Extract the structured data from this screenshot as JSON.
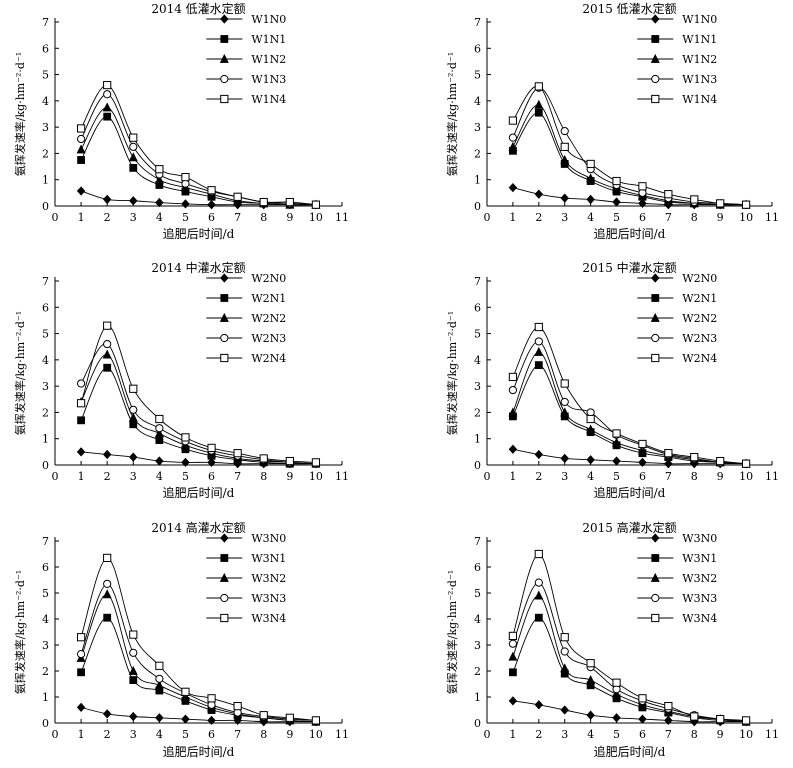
{
  "chart_data": [
    {
      "type": "line",
      "title": "2014 低灌水定额",
      "xlabel": "追肥后时间/d",
      "ylabel": "氨挥发速率/kg·hm⁻²·d⁻¹",
      "xlim": [
        0,
        11
      ],
      "ylim": [
        0,
        7
      ],
      "xticks": [
        "0",
        "1",
        "2",
        "3",
        "4",
        "5",
        "6",
        "7",
        "8",
        "9",
        "10",
        "11"
      ],
      "yticks": [
        "0",
        "1",
        "2",
        "3",
        "4",
        "5",
        "6",
        "7"
      ],
      "legend_position": "top-right",
      "grid": false,
      "x": [
        1,
        2,
        3,
        4,
        5,
        6,
        7,
        8,
        9,
        10
      ],
      "series": [
        {
          "name": "W1N0",
          "marker": "diamond",
          "values": [
            0.57,
            0.25,
            0.2,
            0.13,
            0.08,
            0.05,
            0.05,
            0.05,
            0.05,
            0.05
          ]
        },
        {
          "name": "W1N1",
          "marker": "square-filled",
          "values": [
            1.75,
            3.4,
            1.45,
            0.8,
            0.55,
            0.35,
            0.15,
            0.1,
            0.05,
            0.05
          ]
        },
        {
          "name": "W1N2",
          "marker": "triangle",
          "values": [
            2.15,
            3.75,
            1.85,
            1.0,
            0.7,
            0.45,
            0.2,
            0.1,
            0.05,
            0.05
          ]
        },
        {
          "name": "W1N3",
          "marker": "circle-open",
          "values": [
            2.55,
            4.25,
            2.25,
            1.2,
            0.85,
            0.55,
            0.35,
            0.15,
            0.1,
            0.05
          ]
        },
        {
          "name": "W1N4",
          "marker": "square-open",
          "values": [
            2.95,
            4.6,
            2.6,
            1.4,
            1.1,
            0.6,
            0.35,
            0.15,
            0.15,
            0.05
          ]
        }
      ]
    },
    {
      "type": "line",
      "title": "2015 低灌水定额",
      "xlabel": "追肥后时间/d",
      "ylabel": "氨挥发速率/kg·hm⁻²·d⁻¹",
      "xlim": [
        0,
        11
      ],
      "ylim": [
        0,
        7
      ],
      "xticks": [
        "0",
        "1",
        "2",
        "3",
        "4",
        "5",
        "6",
        "7",
        "8",
        "9",
        "10",
        "11"
      ],
      "yticks": [
        "0",
        "1",
        "2",
        "3",
        "4",
        "5",
        "6",
        "7"
      ],
      "legend_position": "top-right",
      "grid": false,
      "x": [
        1,
        2,
        3,
        4,
        5,
        6,
        7,
        8,
        9,
        10
      ],
      "series": [
        {
          "name": "W1N0",
          "marker": "diamond",
          "values": [
            0.7,
            0.45,
            0.3,
            0.25,
            0.15,
            0.1,
            0.05,
            0.05,
            0.05,
            0.05
          ]
        },
        {
          "name": "W1N1",
          "marker": "square-filled",
          "values": [
            2.1,
            3.55,
            1.6,
            0.95,
            0.55,
            0.35,
            0.15,
            0.1,
            0.05,
            0.05
          ]
        },
        {
          "name": "W1N2",
          "marker": "triangle",
          "values": [
            2.25,
            3.85,
            1.75,
            1.05,
            0.65,
            0.4,
            0.2,
            0.1,
            0.05,
            0.05
          ]
        },
        {
          "name": "W1N3",
          "marker": "circle-open",
          "values": [
            2.6,
            4.5,
            2.85,
            1.4,
            0.8,
            0.5,
            0.3,
            0.15,
            0.1,
            0.05
          ]
        },
        {
          "name": "W1N4",
          "marker": "square-open",
          "values": [
            3.25,
            4.55,
            2.25,
            1.6,
            0.95,
            0.75,
            0.45,
            0.25,
            0.1,
            0.05
          ]
        }
      ]
    },
    {
      "type": "line",
      "title": "2014 中灌水定额",
      "xlabel": "追肥后时间/d",
      "ylabel": "氨挥发速率/kg·hm⁻²·d⁻¹",
      "xlim": [
        0,
        11
      ],
      "ylim": [
        0,
        7
      ],
      "xticks": [
        "0",
        "1",
        "2",
        "3",
        "4",
        "5",
        "6",
        "7",
        "8",
        "9",
        "10",
        "11"
      ],
      "yticks": [
        "0",
        "1",
        "2",
        "3",
        "4",
        "5",
        "6",
        "7"
      ],
      "legend_position": "top-right",
      "grid": false,
      "x": [
        1,
        2,
        3,
        4,
        5,
        6,
        7,
        8,
        9,
        10
      ],
      "series": [
        {
          "name": "W2N0",
          "marker": "diamond",
          "values": [
            0.5,
            0.4,
            0.3,
            0.15,
            0.1,
            0.1,
            0.05,
            0.05,
            0.05,
            0.05
          ]
        },
        {
          "name": "W2N1",
          "marker": "square-filled",
          "values": [
            1.7,
            3.7,
            1.55,
            0.95,
            0.6,
            0.35,
            0.2,
            0.1,
            0.05,
            0.05
          ]
        },
        {
          "name": "W2N2",
          "marker": "triangle",
          "values": [
            2.4,
            4.2,
            1.8,
            1.2,
            0.75,
            0.45,
            0.25,
            0.15,
            0.1,
            0.05
          ]
        },
        {
          "name": "W2N3",
          "marker": "circle-open",
          "values": [
            3.1,
            4.6,
            2.1,
            1.4,
            0.9,
            0.55,
            0.35,
            0.2,
            0.1,
            0.05
          ]
        },
        {
          "name": "W2N4",
          "marker": "square-open",
          "values": [
            2.35,
            5.3,
            2.9,
            1.75,
            1.05,
            0.65,
            0.45,
            0.25,
            0.15,
            0.1
          ]
        }
      ]
    },
    {
      "type": "line",
      "title": "2015 中灌水定额",
      "xlabel": "追肥后时间/d",
      "ylabel": "氨挥发速率/kg·hm⁻²·d⁻¹",
      "xlim": [
        0,
        11
      ],
      "ylim": [
        0,
        7
      ],
      "xticks": [
        "0",
        "1",
        "2",
        "3",
        "4",
        "5",
        "6",
        "7",
        "8",
        "9",
        "10",
        "11"
      ],
      "yticks": [
        "0",
        "1",
        "2",
        "3",
        "4",
        "5",
        "6",
        "7"
      ],
      "legend_position": "top-right",
      "grid": false,
      "x": [
        1,
        2,
        3,
        4,
        5,
        6,
        7,
        8,
        9,
        10
      ],
      "series": [
        {
          "name": "W2N0",
          "marker": "diamond",
          "values": [
            0.6,
            0.4,
            0.25,
            0.2,
            0.15,
            0.1,
            0.05,
            0.05,
            0.05,
            0.05
          ]
        },
        {
          "name": "W2N1",
          "marker": "square-filled",
          "values": [
            1.85,
            3.8,
            1.85,
            1.25,
            0.75,
            0.45,
            0.3,
            0.15,
            0.1,
            0.05
          ]
        },
        {
          "name": "W2N2",
          "marker": "triangle",
          "values": [
            2.0,
            4.3,
            2.0,
            1.35,
            0.85,
            0.55,
            0.35,
            0.2,
            0.1,
            0.05
          ]
        },
        {
          "name": "W2N3",
          "marker": "circle-open",
          "values": [
            2.85,
            4.7,
            2.4,
            2.0,
            1.15,
            0.75,
            0.4,
            0.25,
            0.1,
            0.05
          ]
        },
        {
          "name": "W2N4",
          "marker": "square-open",
          "values": [
            3.35,
            5.25,
            3.1,
            1.75,
            1.2,
            0.8,
            0.45,
            0.3,
            0.15,
            0.05
          ]
        }
      ]
    },
    {
      "type": "line",
      "title": "2014 高灌水定额",
      "xlabel": "追肥后时间/d",
      "ylabel": "氨挥发速率/kg·hm⁻²·d⁻¹",
      "xlim": [
        0,
        11
      ],
      "ylim": [
        0,
        7
      ],
      "xticks": [
        "0",
        "1",
        "2",
        "3",
        "4",
        "5",
        "6",
        "7",
        "8",
        "9",
        "10",
        "11"
      ],
      "yticks": [
        "0",
        "1",
        "2",
        "3",
        "4",
        "5",
        "6",
        "7"
      ],
      "legend_position": "top-right",
      "grid": false,
      "x": [
        1,
        2,
        3,
        4,
        5,
        6,
        7,
        8,
        9,
        10
      ],
      "series": [
        {
          "name": "W3N0",
          "marker": "diamond",
          "values": [
            0.6,
            0.35,
            0.25,
            0.2,
            0.15,
            0.1,
            0.1,
            0.05,
            0.05,
            0.05
          ]
        },
        {
          "name": "W3N1",
          "marker": "square-filled",
          "values": [
            1.95,
            4.05,
            1.65,
            1.25,
            0.85,
            0.5,
            0.3,
            0.2,
            0.1,
            0.05
          ]
        },
        {
          "name": "W3N2",
          "marker": "triangle",
          "values": [
            2.5,
            4.95,
            2.0,
            1.45,
            1.0,
            0.6,
            0.35,
            0.2,
            0.1,
            0.05
          ]
        },
        {
          "name": "W3N3",
          "marker": "circle-open",
          "values": [
            2.65,
            5.35,
            2.7,
            1.7,
            1.15,
            0.7,
            0.4,
            0.25,
            0.15,
            0.1
          ]
        },
        {
          "name": "W3N4",
          "marker": "square-open",
          "values": [
            3.3,
            6.35,
            3.4,
            2.2,
            1.2,
            0.95,
            0.65,
            0.3,
            0.2,
            0.1
          ]
        }
      ]
    },
    {
      "type": "line",
      "title": "2015 高灌水定额",
      "xlabel": "追肥后时间/d",
      "ylabel": "氨挥发速率/kg·hm⁻²·d⁻¹",
      "xlim": [
        0,
        11
      ],
      "ylim": [
        0,
        7
      ],
      "xticks": [
        "0",
        "1",
        "2",
        "3",
        "4",
        "5",
        "6",
        "7",
        "8",
        "9",
        "10",
        "11"
      ],
      "yticks": [
        "0",
        "1",
        "2",
        "3",
        "4",
        "5",
        "6",
        "7"
      ],
      "legend_position": "top-right",
      "grid": false,
      "x": [
        1,
        2,
        3,
        4,
        5,
        6,
        7,
        8,
        9,
        10
      ],
      "series": [
        {
          "name": "W3N0",
          "marker": "diamond",
          "values": [
            0.85,
            0.7,
            0.5,
            0.3,
            0.2,
            0.15,
            0.1,
            0.05,
            0.05,
            0.05
          ]
        },
        {
          "name": "W3N1",
          "marker": "square-filled",
          "values": [
            1.95,
            4.05,
            1.9,
            1.45,
            0.95,
            0.6,
            0.4,
            0.2,
            0.1,
            0.05
          ]
        },
        {
          "name": "W3N2",
          "marker": "triangle",
          "values": [
            2.55,
            4.9,
            2.1,
            1.65,
            1.1,
            0.7,
            0.45,
            0.25,
            0.15,
            0.05
          ]
        },
        {
          "name": "W3N3",
          "marker": "circle-open",
          "values": [
            3.05,
            5.4,
            2.75,
            2.15,
            1.3,
            0.85,
            0.55,
            0.3,
            0.15,
            0.05
          ]
        },
        {
          "name": "W3N4",
          "marker": "square-open",
          "values": [
            3.35,
            6.5,
            3.3,
            2.3,
            1.55,
            0.95,
            0.65,
            0.25,
            0.15,
            0.1
          ]
        }
      ]
    }
  ]
}
